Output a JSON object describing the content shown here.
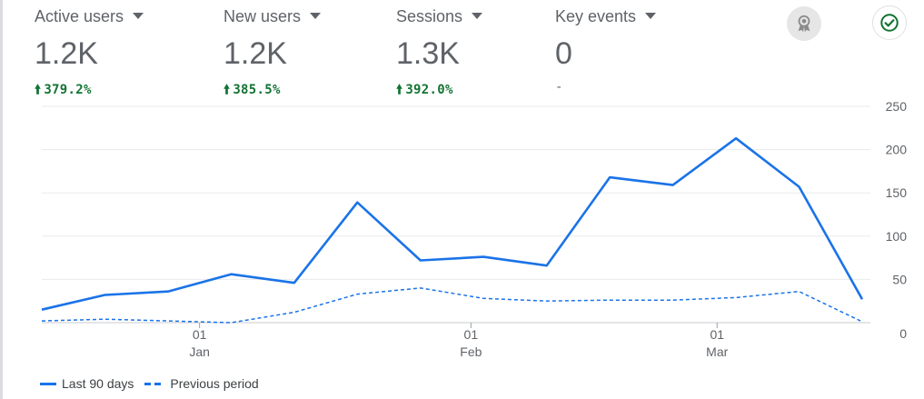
{
  "metrics": [
    {
      "name": "Active users",
      "value": "1.2K",
      "change": "379.2%",
      "direction": "up",
      "active": true
    },
    {
      "name": "New users",
      "value": "1.2K",
      "change": "385.5%",
      "direction": "up",
      "active": false
    },
    {
      "name": "Sessions",
      "value": "1.3K",
      "change": "392.0%",
      "direction": "up",
      "active": false
    },
    {
      "name": "Key events",
      "value": "0",
      "change": "-",
      "direction": "none",
      "active": false
    }
  ],
  "icons": {
    "insights": "award-ribbon-icon",
    "status": "check-circle-icon"
  },
  "colors": {
    "accent": "#1a73e8",
    "positive": "#137333",
    "grid": "#e8eaed"
  },
  "legend": {
    "current": "Last 90 days",
    "previous": "Previous period"
  },
  "chart_data": {
    "type": "line",
    "ylim": [
      0,
      250
    ],
    "yticks": [
      0,
      50,
      100,
      150,
      200,
      250
    ],
    "grid": true,
    "legend_position": "bottom-left",
    "x_tick_labels": [
      {
        "day": "01",
        "month": "Jan",
        "index": 2.5
      },
      {
        "day": "01",
        "month": "Feb",
        "index": 6.8
      },
      {
        "day": "01",
        "month": "Mar",
        "index": 10.7
      }
    ],
    "series": [
      {
        "name": "Last 90 days",
        "style": "solid",
        "values": [
          15,
          32,
          36,
          56,
          46,
          139,
          72,
          76,
          66,
          168,
          159,
          213,
          157,
          27
        ]
      },
      {
        "name": "Previous period",
        "style": "dashed",
        "values": [
          2,
          4,
          2,
          0,
          12,
          33,
          40,
          28,
          25,
          26,
          26,
          29,
          36,
          1
        ]
      }
    ]
  }
}
